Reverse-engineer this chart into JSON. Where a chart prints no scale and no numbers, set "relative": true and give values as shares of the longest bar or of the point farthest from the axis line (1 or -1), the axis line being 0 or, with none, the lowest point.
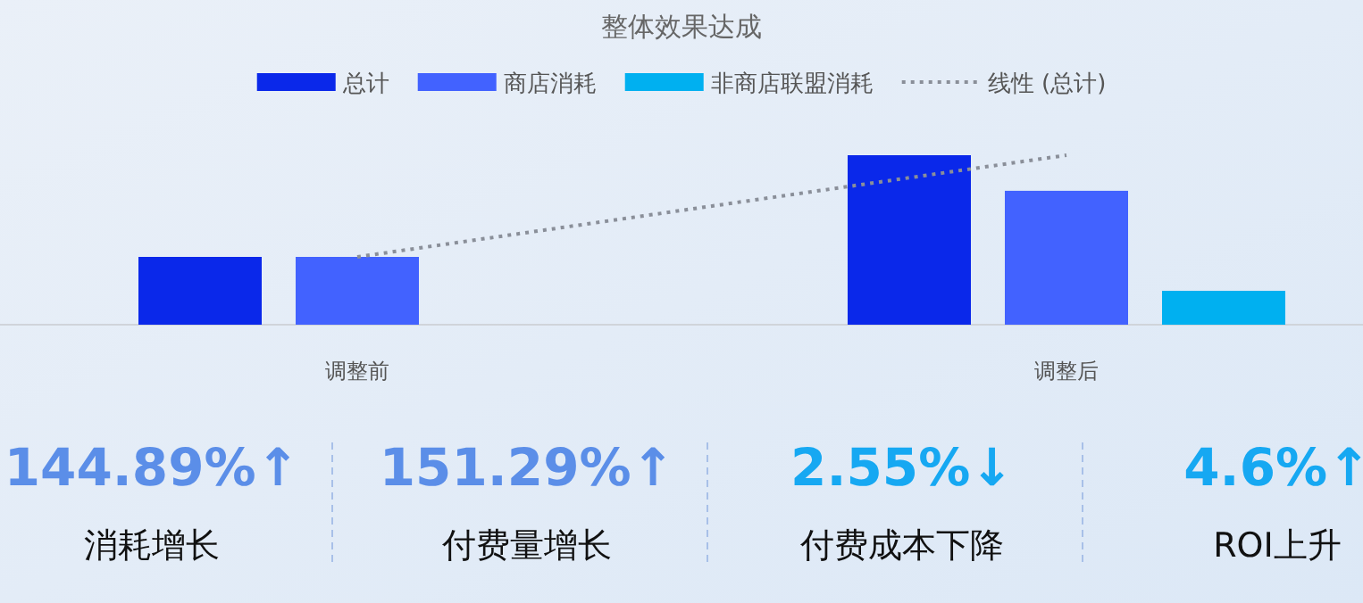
{
  "chart_data": [
    {
      "type": "bar",
      "title": "整体效果达成",
      "relative": true,
      "legend": "top",
      "categories": [
        "调整前",
        "调整后"
      ],
      "series": [
        {
          "name": "总计",
          "color": "#0a28ea",
          "values": [
            0.4,
            1
          ]
        },
        {
          "name": "商店消耗",
          "color": "#4262ff",
          "values": [
            0.4,
            0.79
          ]
        },
        {
          "name": "非商店联盟消耗",
          "color": "#00b0f0",
          "values": [
            null,
            0.2
          ]
        },
        {
          "name": "线性 (总计)",
          "type": "line",
          "line_style": "dotted",
          "color": "#8a8f99",
          "values": [
            0.4,
            1
          ]
        }
      ]
    },
    {
      "type": "other",
      "colors": [
        "#5b8ee8",
        "#5b8ee8",
        "#16a8f2",
        "#16a8f2"
      ],
      "annotations": [
        "144.89%↑",
        "消耗增长",
        "151.29%↑",
        "付费量增长",
        "2.55%↓",
        "付费成本下降",
        "4.6%↑",
        "ROI上升"
      ]
    }
  ]
}
